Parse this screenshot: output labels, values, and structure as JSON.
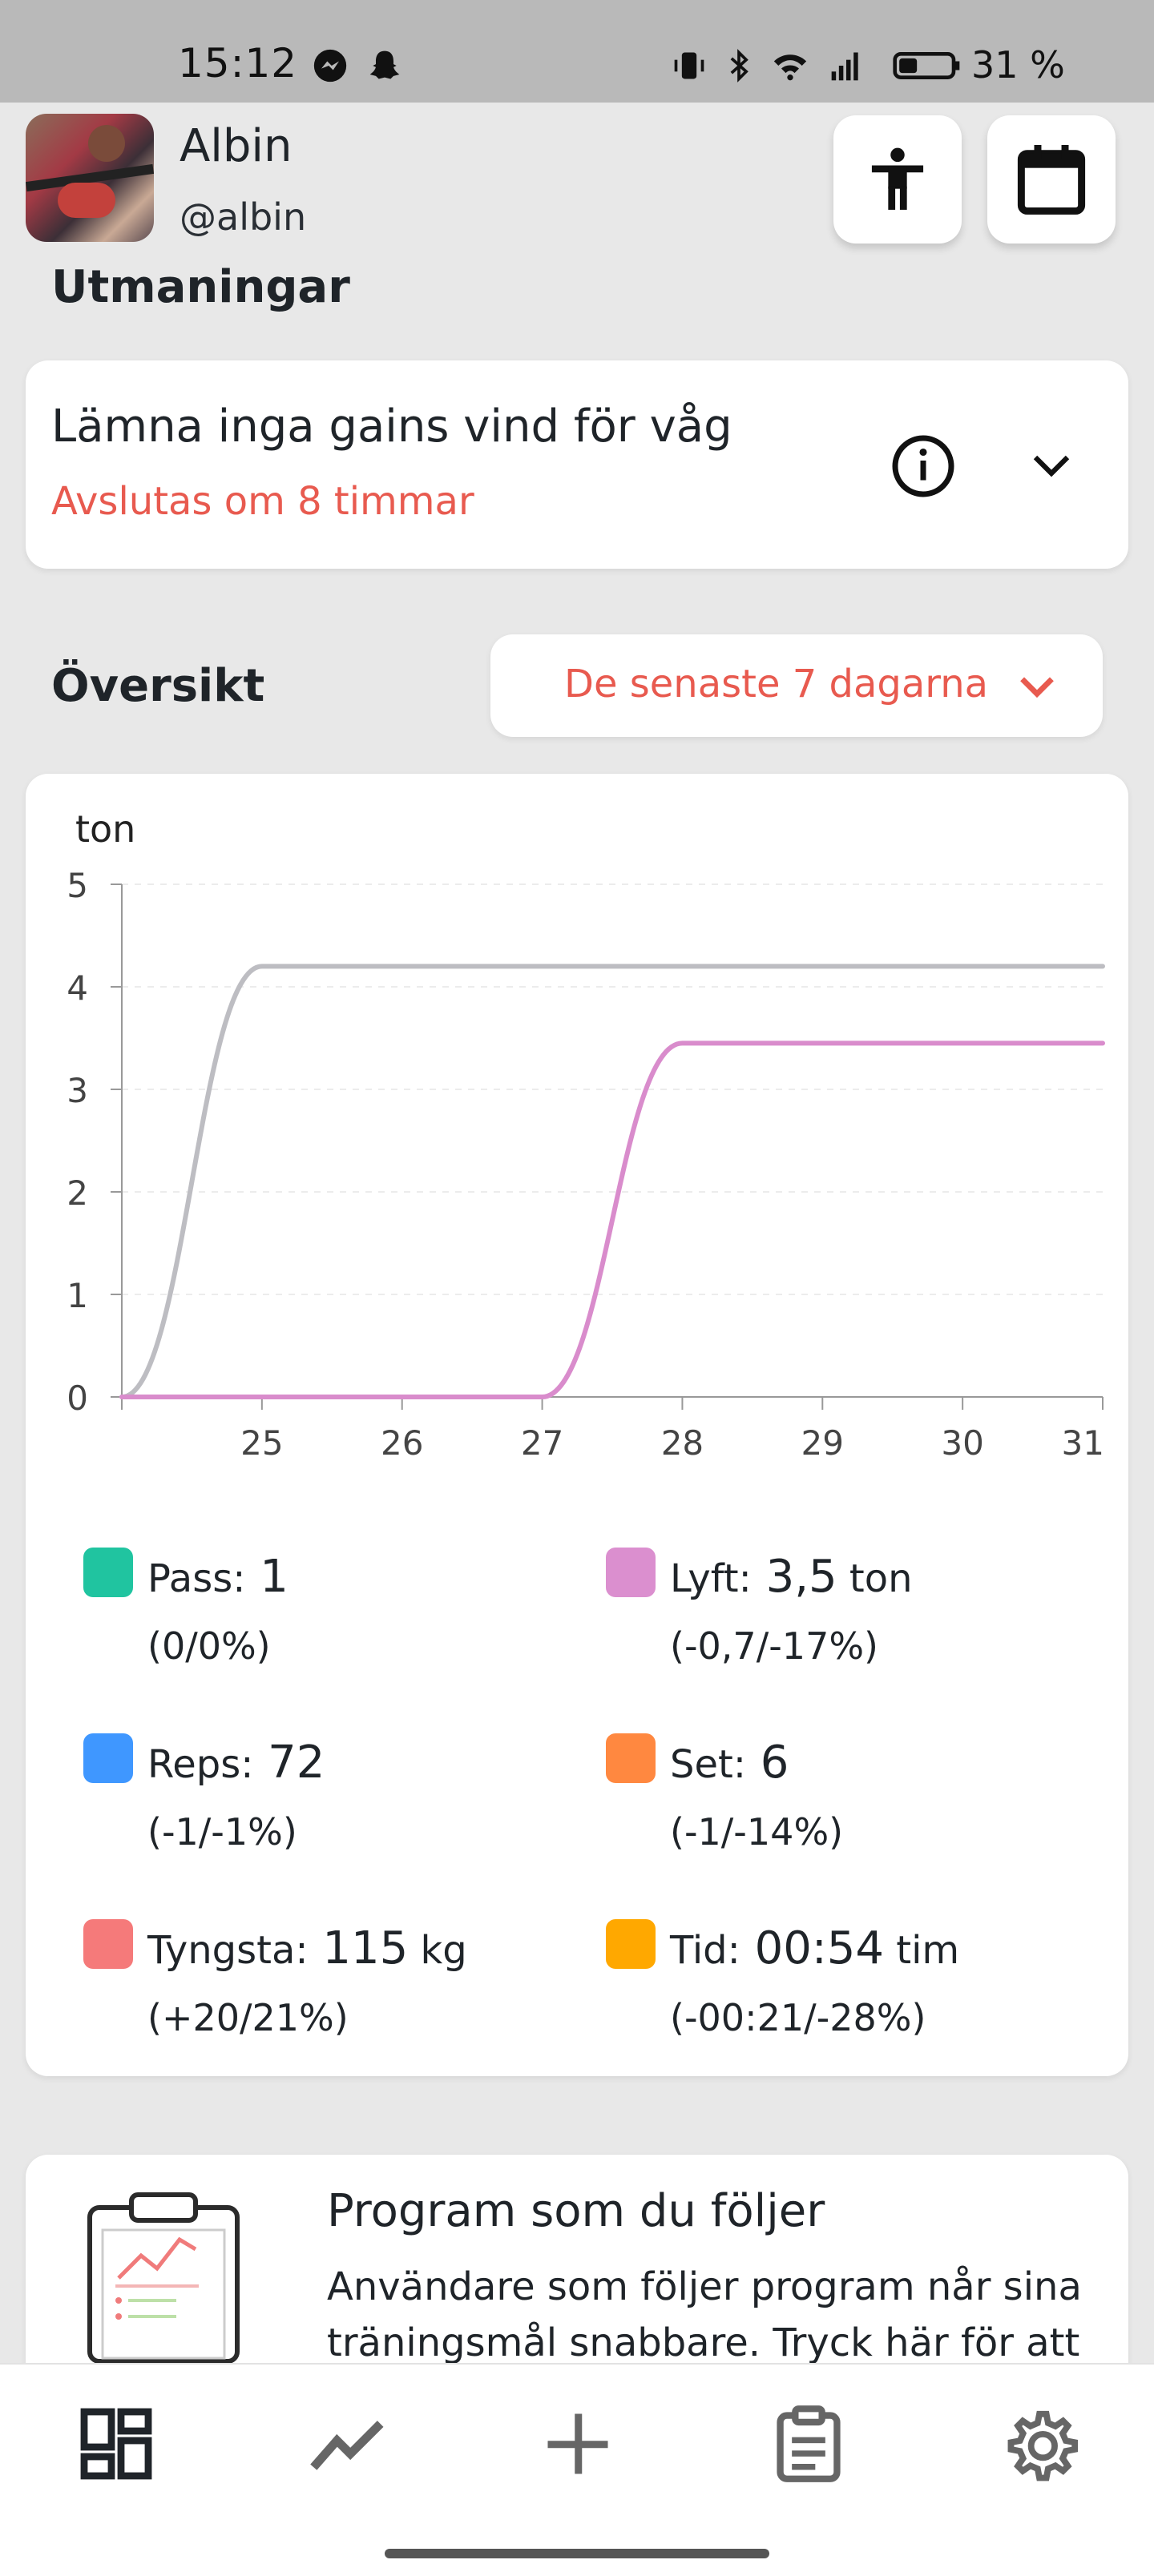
{
  "status_bar": {
    "time": "15:12",
    "battery": "31 %"
  },
  "profile": {
    "name": "Albin",
    "handle": "@albin"
  },
  "challenges": {
    "title": "Utmaningar",
    "card_title": "Lämna inga gains vind för våg",
    "card_subtitle": "Avslutas om 8 timmar"
  },
  "overview": {
    "title": "Översikt",
    "period_label": "De senaste 7 dagarna"
  },
  "chart_data": {
    "type": "line",
    "ylabel": "ton",
    "ylim": [
      0,
      5
    ],
    "yticks": [
      "5",
      "4",
      "3",
      "2",
      "1",
      "0"
    ],
    "x": [
      24,
      25,
      26,
      27,
      28,
      29,
      30,
      31
    ],
    "xticks": [
      "25",
      "26",
      "27",
      "28",
      "29",
      "30",
      "31"
    ],
    "grid": true,
    "series": [
      {
        "color": "#bdbdc2",
        "values": [
          0,
          4.2,
          4.2,
          4.2,
          4.2,
          4.2,
          4.2,
          4.2
        ]
      },
      {
        "color": "#d98ccc",
        "values": [
          0,
          0,
          0,
          0,
          3.45,
          3.45,
          3.45,
          3.45
        ]
      }
    ]
  },
  "stats": [
    {
      "label": "Pass:",
      "value": "1",
      "unit": "",
      "delta": "(0/0%)",
      "color": "#20c4a0"
    },
    {
      "label": "Lyft:",
      "value": "3,5",
      "unit": "ton",
      "delta": "(-0,7/-17%)",
      "color": "#db8fcf"
    },
    {
      "label": "Reps:",
      "value": "72",
      "unit": "",
      "delta": "(-1/-1%)",
      "color": "#3f97ff"
    },
    {
      "label": "Set:",
      "value": "6",
      "unit": "",
      "delta": "(-1/-14%)",
      "color": "#ff8840"
    },
    {
      "label": "Tyngsta:",
      "value": "115",
      "unit": "kg",
      "delta": "(+20/21%)",
      "color": "#f57a7a"
    },
    {
      "label": "Tid:",
      "value": "00:54",
      "unit": "tim",
      "delta": "(-00:21/-28%)",
      "color": "#ffa800"
    }
  ],
  "program": {
    "title": "Program som du följer",
    "text": "Användare som följer program når sina träningsmål snabbare. Tryck här för att"
  },
  "nav": {
    "items": [
      "dashboard-icon",
      "trend-icon",
      "plus-icon",
      "clipboard-icon",
      "gear-icon"
    ]
  }
}
